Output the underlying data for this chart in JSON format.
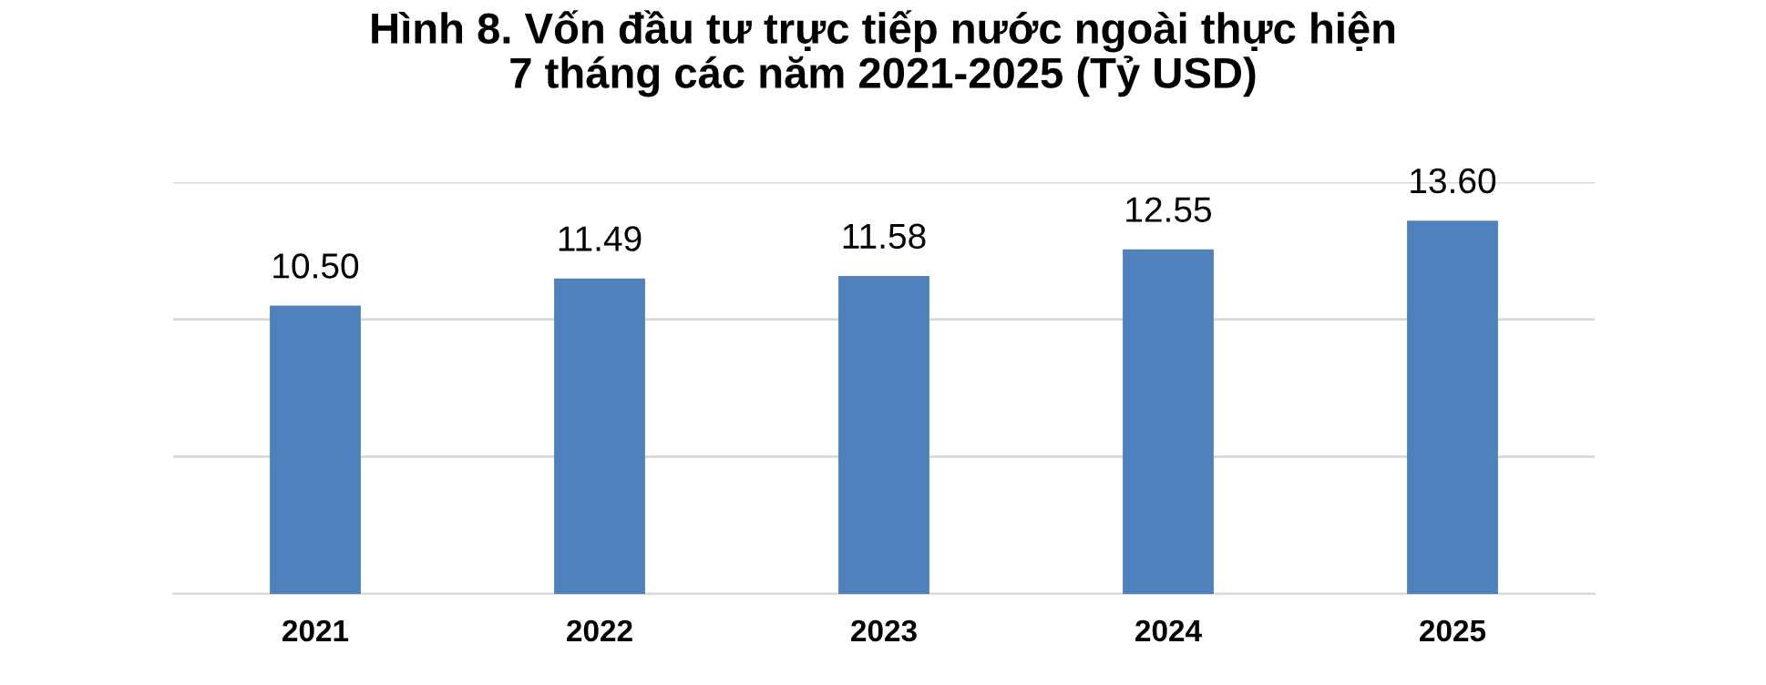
{
  "chart_data": {
    "type": "bar",
    "title": "Hình 8. Vốn đầu tư trực tiếp nước ngoài thực hiện\n7 tháng các năm 2021-2025 (Tỷ USD)",
    "categories": [
      "2021",
      "2022",
      "2023",
      "2024",
      "2025"
    ],
    "values": [
      10.5,
      11.49,
      11.58,
      12.55,
      13.6
    ],
    "value_labels": [
      "10.50",
      "11.49",
      "11.58",
      "12.55",
      "13.60"
    ],
    "color": "#4f81bd",
    "ylim": [
      0,
      15
    ],
    "yticks": [
      {
        "value": 0,
        "label": null
      },
      {
        "value": 5,
        "label": null
      },
      {
        "value": 10,
        "label": null
      },
      {
        "value": 15,
        "label": null
      }
    ],
    "tick_labels": "x",
    "grid": "y",
    "legend": false
  }
}
